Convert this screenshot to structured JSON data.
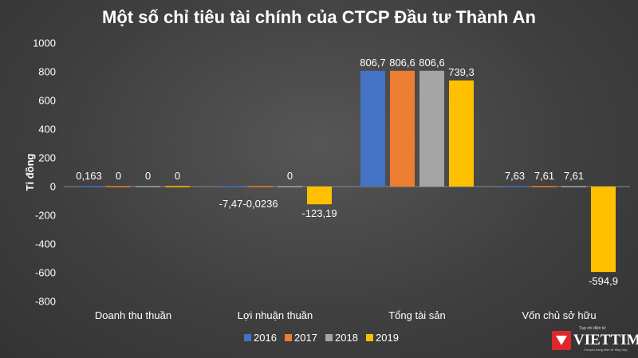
{
  "chart_data": {
    "type": "bar",
    "title": "Một số chỉ tiêu tài chính của CTCP Đầu tư Thành An",
    "ylabel": "Tỉ đồng",
    "xlabel": "",
    "ylim": [
      -800,
      1000
    ],
    "yticks": [
      -800,
      -600,
      -400,
      -200,
      0,
      200,
      400,
      600,
      800,
      1000
    ],
    "grid": false,
    "legend_position": "bottom",
    "categories": [
      "Doanh thu thuần",
      "Lợi nhuận thuần",
      "Tổng tài sản",
      "Vốn chủ sở hữu"
    ],
    "series": [
      {
        "name": "2016",
        "color": "#4472c4",
        "values": [
          0.163,
          -7.47,
          806.7,
          7.63
        ],
        "labels": [
          "0,163",
          "-7,47",
          "806,7",
          "7,63"
        ]
      },
      {
        "name": "2017",
        "color": "#ed7d31",
        "values": [
          0,
          -0.0236,
          806.6,
          7.61
        ],
        "labels": [
          "0",
          "-0,0236",
          "806,6",
          "7,61"
        ]
      },
      {
        "name": "2018",
        "color": "#a5a5a5",
        "values": [
          0,
          0,
          806.6,
          7.61
        ],
        "labels": [
          "0",
          "0",
          "806,6",
          "7,61"
        ]
      },
      {
        "name": "2019",
        "color": "#ffc000",
        "values": [
          0,
          -123.19,
          739.3,
          -594.9
        ],
        "labels": [
          "0",
          "-123,19",
          "739,3",
          "-594,9"
        ]
      }
    ]
  },
  "watermark": {
    "brand": "VIETTIMES",
    "tagline_top": "Tạp chí điện tử",
    "tagline_bottom": "Chuyên trang điện tử tổng hợp"
  }
}
